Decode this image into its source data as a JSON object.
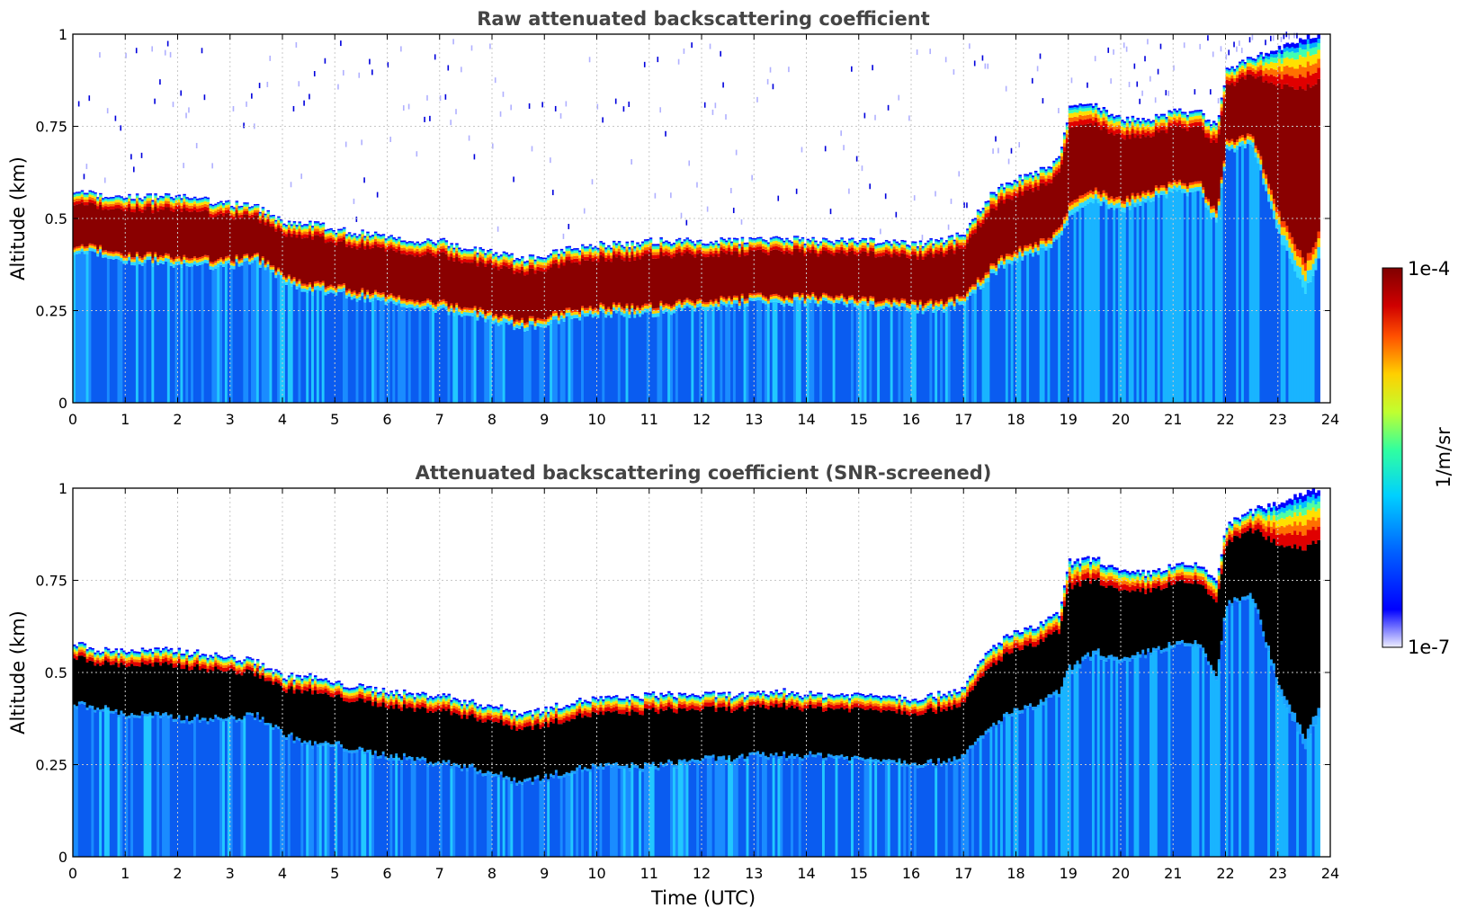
{
  "chart_data": [
    {
      "type": "heatmap",
      "title": "Raw attenuated backscattering coefficient",
      "xlabel": "",
      "ylabel": "Altitude (km)",
      "xlim": [
        0,
        24
      ],
      "ylim": [
        0,
        1
      ],
      "xticks": [
        "0",
        "1",
        "2",
        "3",
        "4",
        "5",
        "6",
        "7",
        "8",
        "9",
        "10",
        "11",
        "12",
        "13",
        "14",
        "15",
        "16",
        "17",
        "18",
        "19",
        "20",
        "21",
        "22",
        "23",
        "24"
      ],
      "yticks": [
        "0",
        "0.25",
        "0.5",
        "0.75",
        "1"
      ],
      "grid": true,
      "screened": false,
      "layer_top_km": [
        [
          0,
          0.58
        ],
        [
          0.5,
          0.56
        ],
        [
          1,
          0.56
        ],
        [
          1.5,
          0.56
        ],
        [
          2,
          0.56
        ],
        [
          2.5,
          0.55
        ],
        [
          3,
          0.54
        ],
        [
          3.5,
          0.53
        ],
        [
          4,
          0.49
        ],
        [
          4.5,
          0.49
        ],
        [
          5,
          0.47
        ],
        [
          5.5,
          0.46
        ],
        [
          6,
          0.45
        ],
        [
          6.5,
          0.44
        ],
        [
          7,
          0.44
        ],
        [
          7.5,
          0.42
        ],
        [
          8,
          0.41
        ],
        [
          8.5,
          0.39
        ],
        [
          9,
          0.4
        ],
        [
          9.5,
          0.42
        ],
        [
          10,
          0.43
        ],
        [
          10.5,
          0.43
        ],
        [
          11,
          0.44
        ],
        [
          11.5,
          0.44
        ],
        [
          12,
          0.44
        ],
        [
          12.5,
          0.44
        ],
        [
          13,
          0.44
        ],
        [
          13.5,
          0.45
        ],
        [
          14,
          0.44
        ],
        [
          14.5,
          0.44
        ],
        [
          15,
          0.44
        ],
        [
          15.5,
          0.44
        ],
        [
          16,
          0.43
        ],
        [
          16.5,
          0.44
        ],
        [
          17,
          0.46
        ],
        [
          17.4,
          0.55
        ],
        [
          17.8,
          0.6
        ],
        [
          18.3,
          0.62
        ],
        [
          18.8,
          0.66
        ],
        [
          19,
          0.8
        ],
        [
          19.5,
          0.81
        ],
        [
          20,
          0.77
        ],
        [
          20.5,
          0.77
        ],
        [
          21,
          0.79
        ],
        [
          21.5,
          0.79
        ],
        [
          21.8,
          0.75
        ],
        [
          22,
          0.9
        ],
        [
          22.5,
          0.94
        ],
        [
          23,
          0.96
        ],
        [
          23.5,
          0.99
        ],
        [
          23.8,
          1.0
        ]
      ],
      "layer_base_km": [
        [
          0,
          0.41
        ],
        [
          0.5,
          0.4
        ],
        [
          1,
          0.38
        ],
        [
          1.5,
          0.38
        ],
        [
          2,
          0.37
        ],
        [
          2.5,
          0.37
        ],
        [
          3,
          0.37
        ],
        [
          3.5,
          0.38
        ],
        [
          4,
          0.33
        ],
        [
          4.5,
          0.3
        ],
        [
          5,
          0.3
        ],
        [
          5.5,
          0.28
        ],
        [
          6,
          0.27
        ],
        [
          6.5,
          0.26
        ],
        [
          7,
          0.25
        ],
        [
          7.5,
          0.24
        ],
        [
          8,
          0.22
        ],
        [
          8.5,
          0.2
        ],
        [
          9,
          0.21
        ],
        [
          9.5,
          0.23
        ],
        [
          10,
          0.24
        ],
        [
          10.5,
          0.24
        ],
        [
          11,
          0.24
        ],
        [
          11.5,
          0.25
        ],
        [
          12,
          0.26
        ],
        [
          12.5,
          0.26
        ],
        [
          13,
          0.27
        ],
        [
          13.5,
          0.27
        ],
        [
          14,
          0.27
        ],
        [
          14.5,
          0.27
        ],
        [
          15,
          0.26
        ],
        [
          15.5,
          0.26
        ],
        [
          16,
          0.25
        ],
        [
          16.5,
          0.25
        ],
        [
          17,
          0.27
        ],
        [
          17.4,
          0.33
        ],
        [
          17.8,
          0.38
        ],
        [
          18.3,
          0.4
        ],
        [
          18.8,
          0.44
        ],
        [
          19,
          0.5
        ],
        [
          19.5,
          0.55
        ],
        [
          20,
          0.52
        ],
        [
          20.5,
          0.55
        ],
        [
          21,
          0.57
        ],
        [
          21.5,
          0.57
        ],
        [
          21.8,
          0.48
        ],
        [
          22,
          0.68
        ],
        [
          22.5,
          0.7
        ],
        [
          23,
          0.45
        ],
        [
          23.5,
          0.3
        ],
        [
          23.8,
          0.4
        ]
      ],
      "data_end_hour": 23.8
    },
    {
      "type": "heatmap",
      "title": "Attenuated backscattering coefficient (SNR-screened)",
      "xlabel": "Time (UTC)",
      "ylabel": "Altitude (km)",
      "xlim": [
        0,
        24
      ],
      "ylim": [
        0,
        1
      ],
      "xticks": [
        "0",
        "1",
        "2",
        "3",
        "4",
        "5",
        "6",
        "7",
        "8",
        "9",
        "10",
        "11",
        "12",
        "13",
        "14",
        "15",
        "16",
        "17",
        "18",
        "19",
        "20",
        "21",
        "22",
        "23",
        "24"
      ],
      "yticks": [
        "0",
        "0.25",
        "0.5",
        "0.75",
        "1"
      ],
      "grid": true,
      "screened": true,
      "data_end_hour": 23.8
    }
  ],
  "colorbar": {
    "label": "1/m/sr",
    "max_label": "1e-4",
    "min_label": "1e-7",
    "scale": "log",
    "range": [
      1e-07,
      0.0001
    ],
    "colormap": "jet",
    "colors": [
      "#eeeeff",
      "#8888ff",
      "#0000ff",
      "#0080ff",
      "#00e0ff",
      "#40ff90",
      "#d0ff20",
      "#ffd000",
      "#ff6000",
      "#e00000",
      "#800000"
    ]
  }
}
